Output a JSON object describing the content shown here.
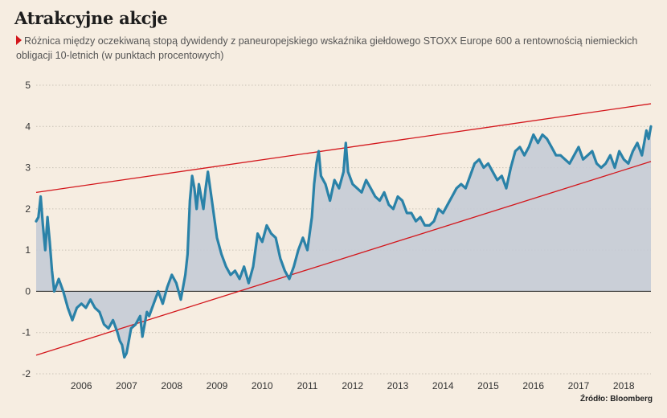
{
  "title": "Atrakcyjne akcje",
  "subtitle": "Różnica między oczekiwaną stopą dywidendy z paneuropejskiego wskaźnika giełdowego STOXX Europe 600 a rentownością niemieckich obligacji 10-letnich (w punktach procentowych)",
  "source": "Źródło: Bloomberg",
  "colors": {
    "background": "#f6ede1",
    "line": "#2a82a8",
    "area": "#c5cbd6",
    "trend": "#d3161b",
    "grid": "#c9c2b6",
    "axis_text": "#333333"
  },
  "chart_data": {
    "type": "area",
    "x_range": [
      2005.5,
      2019.1
    ],
    "ylim": [
      -2,
      5
    ],
    "y_ticks": [
      5,
      4,
      3,
      2,
      1,
      0,
      -1,
      -2
    ],
    "y_tick_labels": [
      "5",
      "4",
      "3",
      "2",
      "1",
      "0",
      "-1",
      "-2"
    ],
    "x_ticks": [
      2006,
      2007,
      2008,
      2009,
      2010,
      2011,
      2012,
      2013,
      2014,
      2015,
      2016,
      2017,
      2018
    ],
    "x_tick_labels": [
      "2006",
      "2007",
      "2008",
      "2009",
      "2010",
      "2011",
      "2012",
      "2013",
      "2014",
      "2015",
      "2016",
      "2017",
      "2018"
    ],
    "grid": "horizontal-dotted",
    "series": [
      {
        "x": [
          2005.5,
          2005.55,
          2005.6,
          2005.65,
          2005.7,
          2005.75,
          2005.8,
          2005.85,
          2005.9,
          2006.0,
          2006.1,
          2006.2,
          2006.3,
          2006.4,
          2006.5,
          2006.6,
          2006.7,
          2006.8,
          2006.9,
          2007.0,
          2007.1,
          2007.2,
          2007.3,
          2007.35,
          2007.4,
          2007.45,
          2007.5,
          2007.55,
          2007.6,
          2007.7,
          2007.8,
          2007.85,
          2007.9,
          2007.95,
          2008.0,
          2008.1,
          2008.2,
          2008.3,
          2008.4,
          2008.5,
          2008.6,
          2008.7,
          2008.75,
          2008.8,
          2008.85,
          2008.9,
          2008.95,
          2009.0,
          2009.05,
          2009.1,
          2009.15,
          2009.2,
          2009.25,
          2009.3,
          2009.4,
          2009.5,
          2009.6,
          2009.7,
          2009.8,
          2009.9,
          2010.0,
          2010.1,
          2010.2,
          2010.3,
          2010.4,
          2010.5,
          2010.6,
          2010.7,
          2010.8,
          2010.9,
          2011.0,
          2011.1,
          2011.2,
          2011.3,
          2011.4,
          2011.5,
          2011.6,
          2011.65,
          2011.7,
          2011.75,
          2011.8,
          2011.9,
          2012.0,
          2012.1,
          2012.2,
          2012.3,
          2012.35,
          2012.4,
          2012.5,
          2012.6,
          2012.7,
          2012.8,
          2012.9,
          2013.0,
          2013.1,
          2013.2,
          2013.3,
          2013.4,
          2013.5,
          2013.6,
          2013.7,
          2013.8,
          2013.9,
          2014.0,
          2014.1,
          2014.2,
          2014.3,
          2014.4,
          2014.5,
          2014.6,
          2014.7,
          2014.8,
          2014.9,
          2015.0,
          2015.1,
          2015.2,
          2015.3,
          2015.4,
          2015.5,
          2015.6,
          2015.7,
          2015.8,
          2015.9,
          2016.0,
          2016.1,
          2016.2,
          2016.3,
          2016.4,
          2016.5,
          2016.6,
          2016.7,
          2016.8,
          2016.9,
          2017.0,
          2017.1,
          2017.2,
          2017.3,
          2017.4,
          2017.5,
          2017.6,
          2017.7,
          2017.8,
          2017.9,
          2018.0,
          2018.1,
          2018.2,
          2018.3,
          2018.4,
          2018.5,
          2018.6,
          2018.7,
          2018.8,
          2018.9,
          2019.0,
          2019.05,
          2019.1
        ],
        "y": [
          1.7,
          1.8,
          2.3,
          1.6,
          1.0,
          1.8,
          1.2,
          0.5,
          0.0,
          0.3,
          0.0,
          -0.4,
          -0.7,
          -0.4,
          -0.3,
          -0.4,
          -0.2,
          -0.4,
          -0.5,
          -0.8,
          -0.9,
          -0.7,
          -1.0,
          -1.2,
          -1.3,
          -1.6,
          -1.5,
          -1.2,
          -0.9,
          -0.8,
          -0.6,
          -1.1,
          -0.8,
          -0.5,
          -0.6,
          -0.3,
          0.0,
          -0.3,
          0.1,
          0.4,
          0.2,
          -0.2,
          0.1,
          0.4,
          0.9,
          2.2,
          2.8,
          2.5,
          2.0,
          2.6,
          2.3,
          2.0,
          2.5,
          2.9,
          2.1,
          1.3,
          0.9,
          0.6,
          0.4,
          0.5,
          0.3,
          0.6,
          0.2,
          0.6,
          1.4,
          1.2,
          1.6,
          1.4,
          1.3,
          0.8,
          0.5,
          0.3,
          0.6,
          1.0,
          1.3,
          1.0,
          1.8,
          2.6,
          3.1,
          3.4,
          2.8,
          2.6,
          2.2,
          2.7,
          2.5,
          2.9,
          3.6,
          2.9,
          2.6,
          2.5,
          2.4,
          2.7,
          2.5,
          2.3,
          2.2,
          2.4,
          2.1,
          2.0,
          2.3,
          2.2,
          1.9,
          1.9,
          1.7,
          1.8,
          1.6,
          1.6,
          1.7,
          2.0,
          1.9,
          2.1,
          2.3,
          2.5,
          2.6,
          2.5,
          2.8,
          3.1,
          3.2,
          3.0,
          3.1,
          2.9,
          2.7,
          2.8,
          2.5,
          3.0,
          3.4,
          3.5,
          3.3,
          3.5,
          3.8,
          3.6,
          3.8,
          3.7,
          3.5,
          3.3,
          3.3,
          3.2,
          3.1,
          3.3,
          3.5,
          3.2,
          3.3,
          3.4,
          3.1,
          3.0,
          3.1,
          3.3,
          3.0,
          3.4,
          3.2,
          3.1,
          3.4,
          3.6,
          3.3,
          3.9,
          3.7,
          4.0
        ]
      }
    ],
    "trendlines": [
      {
        "x": [
          2005.5,
          2019.1
        ],
        "y": [
          2.4,
          4.55
        ]
      },
      {
        "x": [
          2005.5,
          2019.1
        ],
        "y": [
          -1.55,
          3.15
        ]
      }
    ]
  }
}
